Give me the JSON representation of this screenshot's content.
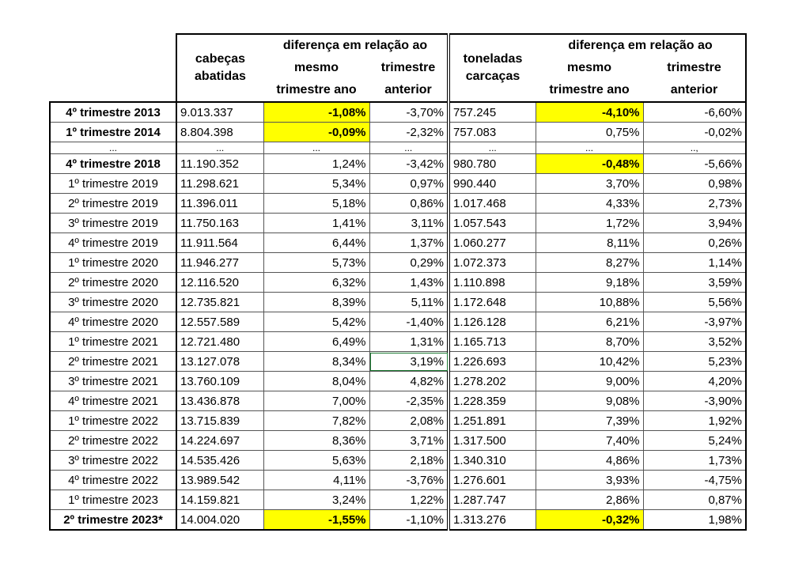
{
  "headers": {
    "cab": "cabeças abatidas",
    "cab_l1": "cabeças",
    "cab_l2": "abatidas",
    "diff_group": "diferença em relação ao",
    "same_l1": "mesmo",
    "same_l2": "trimestre ano",
    "prev_l1": "trimestre",
    "prev_l2": "anterior",
    "ton_l1": "toneladas",
    "ton_l2": "carcaças"
  },
  "rows": [
    {
      "label": "4º trimestre 2013",
      "bold": true,
      "cab": "9.013.337",
      "cab_same": "-1,08%",
      "cab_prev": "-3,70%",
      "ton": "757.245",
      "ton_same": "-4,10%",
      "ton_prev": "-6,60%",
      "hl": [
        1,
        4
      ]
    },
    {
      "label": "1º trimestre 2014",
      "bold": true,
      "cab": "8.804.398",
      "cab_same": "-0,09%",
      "cab_prev": "-2,32%",
      "ton": "757.083",
      "ton_same": "0,75%",
      "ton_prev": "-0,02%",
      "hl": [
        1
      ]
    },
    {
      "dots": true,
      "label": "...",
      "cab": "...",
      "cab_same": "...",
      "cab_prev": "...",
      "ton": "...",
      "ton_same": "...",
      "ton_prev": "..,"
    },
    {
      "label": "4º trimestre 2018",
      "bold": true,
      "cab": "11.190.352",
      "cab_same": "1,24%",
      "cab_prev": "-3,42%",
      "ton": "980.780",
      "ton_same": "-0,48%",
      "ton_prev": "-5,66%",
      "hl": [
        4
      ]
    },
    {
      "label": "1º trimestre 2019",
      "cab": "11.298.621",
      "cab_same": "5,34%",
      "cab_prev": "0,97%",
      "ton": "990.440",
      "ton_same": "3,70%",
      "ton_prev": "0,98%"
    },
    {
      "label": "2º trimestre 2019",
      "cab": "11.396.011",
      "cab_same": "5,18%",
      "cab_prev": "0,86%",
      "ton": "1.017.468",
      "ton_same": "4,33%",
      "ton_prev": "2,73%"
    },
    {
      "label": "3º trimestre 2019",
      "cab": "11.750.163",
      "cab_same": "1,41%",
      "cab_prev": "3,11%",
      "ton": "1.057.543",
      "ton_same": "1,72%",
      "ton_prev": "3,94%"
    },
    {
      "label": "4º trimestre 2019",
      "cab": "11.911.564",
      "cab_same": "6,44%",
      "cab_prev": "1,37%",
      "ton": "1.060.277",
      "ton_same": "8,11%",
      "ton_prev": "0,26%"
    },
    {
      "label": "1º trimestre 2020",
      "cab": "11.946.277",
      "cab_same": "5,73%",
      "cab_prev": "0,29%",
      "ton": "1.072.373",
      "ton_same": "8,27%",
      "ton_prev": "1,14%"
    },
    {
      "label": "2º trimestre 2020",
      "cab": "12.116.520",
      "cab_same": "6,32%",
      "cab_prev": "1,43%",
      "ton": "1.110.898",
      "ton_same": "9,18%",
      "ton_prev": "3,59%"
    },
    {
      "label": "3º trimestre 2020",
      "cab": "12.735.821",
      "cab_same": "8,39%",
      "cab_prev": "5,11%",
      "ton": "1.172.648",
      "ton_same": "10,88%",
      "ton_prev": "5,56%"
    },
    {
      "label": "4º trimestre 2020",
      "cab": "12.557.589",
      "cab_same": "5,42%",
      "cab_prev": "-1,40%",
      "ton": "1.126.128",
      "ton_same": "6,21%",
      "ton_prev": "-3,97%"
    },
    {
      "label": "1º trimestre 2021",
      "cab": "12.721.480",
      "cab_same": "6,49%",
      "cab_prev": "1,31%",
      "ton": "1.165.713",
      "ton_same": "8,70%",
      "ton_prev": "3,52%"
    },
    {
      "label": "2º trimestre 2021",
      "cab": "13.127.078",
      "cab_same": "8,34%",
      "cab_prev": "3,19%",
      "ton": "1.226.693",
      "ton_same": "10,42%",
      "ton_prev": "5,23%",
      "selected": true
    },
    {
      "label": "3º trimestre 2021",
      "cab": "13.760.109",
      "cab_same": "8,04%",
      "cab_prev": "4,82%",
      "ton": "1.278.202",
      "ton_same": "9,00%",
      "ton_prev": "4,20%"
    },
    {
      "label": "4º trimestre 2021",
      "cab": "13.436.878",
      "cab_same": "7,00%",
      "cab_prev": "-2,35%",
      "ton": "1.228.359",
      "ton_same": "9,08%",
      "ton_prev": "-3,90%"
    },
    {
      "label": "1º trimestre 2022",
      "cab": "13.715.839",
      "cab_same": "7,82%",
      "cab_prev": "2,08%",
      "ton": "1.251.891",
      "ton_same": "7,39%",
      "ton_prev": "1,92%"
    },
    {
      "label": "2º trimestre 2022",
      "cab": "14.224.697",
      "cab_same": "8,36%",
      "cab_prev": "3,71%",
      "ton": "1.317.500",
      "ton_same": "7,40%",
      "ton_prev": "5,24%"
    },
    {
      "label": "3º trimestre 2022",
      "cab": "14.535.426",
      "cab_same": "5,63%",
      "cab_prev": "2,18%",
      "ton": "1.340.310",
      "ton_same": "4,86%",
      "ton_prev": "1,73%"
    },
    {
      "label": "4º trimestre 2022",
      "cab": "13.989.542",
      "cab_same": "4,11%",
      "cab_prev": "-3,76%",
      "ton": "1.276.601",
      "ton_same": "3,93%",
      "ton_prev": "-4,75%"
    },
    {
      "label": "1º trimestre 2023",
      "cab": "14.159.821",
      "cab_same": "3,24%",
      "cab_prev": "1,22%",
      "ton": "1.287.747",
      "ton_same": "2,86%",
      "ton_prev": "0,87%"
    },
    {
      "label": "2º trimestre 2023*",
      "bold": true,
      "cab": "14.004.020",
      "cab_same": "-1,55%",
      "cab_prev": "-1,10%",
      "ton": "1.313.276",
      "ton_same": "-0,32%",
      "ton_prev": "1,98%",
      "hl": [
        1,
        4
      ]
    }
  ],
  "highlight_color": "#ffff00",
  "selection_color": "#1e7b34"
}
